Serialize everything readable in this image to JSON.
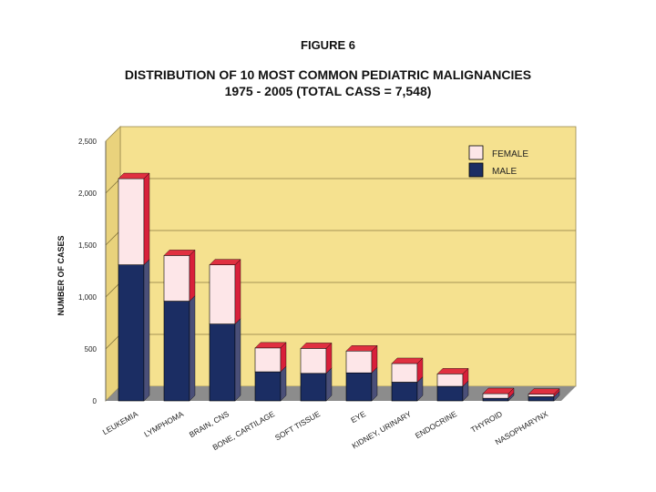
{
  "figure_label": "FIGURE 6",
  "chart_data": {
    "type": "bar",
    "stacked": true,
    "three_d": true,
    "title": "DISTRIBUTION OF 10 MOST COMMON PEDIATRIC MALIGNANCIES",
    "subtitle": "1975 - 2005 (TOTAL CASS = 7,548)",
    "xlabel": "",
    "ylabel": "NUMBER OF CASES",
    "ylim": [
      0,
      2500
    ],
    "yticks": [
      0,
      500,
      1000,
      1500,
      2000,
      2500
    ],
    "ytick_labels": [
      "0",
      "500",
      "1,000",
      "1,500",
      "2,000",
      "2,500"
    ],
    "grid": true,
    "legend_position": "top-right",
    "categories": [
      "LEUKEMIA",
      "LYMPHOMA",
      "BRAIN, CNS",
      "BONE, CARTILAGE",
      "SOFT TISSUE",
      "EYE",
      "KIDNEY, URINARY",
      "ENDOCRINE",
      "THYROID",
      "NASOPHARYNX"
    ],
    "series": [
      {
        "name": "MALE",
        "color": "#1b2d63",
        "values": [
          1310,
          960,
          740,
          280,
          265,
          270,
          180,
          140,
          25,
          40
        ]
      },
      {
        "name": "FEMALE",
        "color": "#fde6e8",
        "values": [
          830,
          440,
          570,
          230,
          240,
          210,
          180,
          120,
          45,
          25
        ]
      }
    ],
    "colors": {
      "plot_background": "#f5e18f",
      "top_face": "#e03040",
      "floor": "#8c8c8c"
    }
  }
}
